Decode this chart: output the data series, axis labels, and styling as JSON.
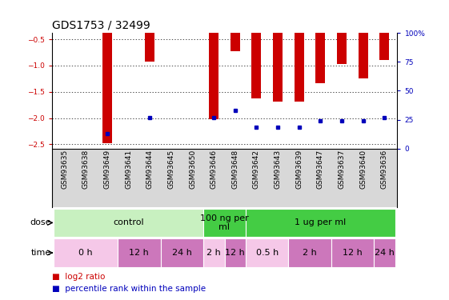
{
  "title": "GDS1753 / 32499",
  "samples": [
    "GSM93635",
    "GSM93638",
    "GSM93649",
    "GSM93641",
    "GSM93644",
    "GSM93645",
    "GSM93650",
    "GSM93646",
    "GSM93648",
    "GSM93642",
    "GSM93643",
    "GSM93639",
    "GSM93647",
    "GSM93637",
    "GSM93640",
    "GSM93636"
  ],
  "log2_ratio": [
    0,
    0,
    -2.48,
    0,
    -0.92,
    0,
    0,
    -2.02,
    -0.72,
    -1.63,
    -1.68,
    -1.68,
    -1.33,
    -0.97,
    -1.25,
    -0.9
  ],
  "pct_rank_log2": [
    null,
    null,
    -2.3,
    null,
    -1.99,
    null,
    null,
    -1.99,
    -1.85,
    -2.17,
    -2.17,
    -2.17,
    -2.05,
    -2.05,
    -2.05,
    -1.99
  ],
  "ylim": [
    -2.58,
    -0.38
  ],
  "yticks_left": [
    -0.5,
    -1.0,
    -1.5,
    -2.0,
    -2.5
  ],
  "yticks_right_pct": [
    0,
    25,
    50,
    75,
    100
  ],
  "baseline": 0.0,
  "dose_groups": [
    {
      "label": "control",
      "start": 0,
      "end": 7,
      "color": "#c8f0c0"
    },
    {
      "label": "100 ng per\nml",
      "start": 7,
      "end": 9,
      "color": "#44cc44"
    },
    {
      "label": "1 ug per ml",
      "start": 9,
      "end": 16,
      "color": "#44cc44"
    }
  ],
  "time_groups": [
    {
      "label": "0 h",
      "start": 0,
      "end": 3,
      "color": "#f5c8e8"
    },
    {
      "label": "12 h",
      "start": 3,
      "end": 5,
      "color": "#cc77bb"
    },
    {
      "label": "24 h",
      "start": 5,
      "end": 7,
      "color": "#cc77bb"
    },
    {
      "label": "2 h",
      "start": 7,
      "end": 8,
      "color": "#f5c8e8"
    },
    {
      "label": "12 h",
      "start": 8,
      "end": 9,
      "color": "#cc77bb"
    },
    {
      "label": "0.5 h",
      "start": 9,
      "end": 11,
      "color": "#f5c8e8"
    },
    {
      "label": "2 h",
      "start": 11,
      "end": 13,
      "color": "#cc77bb"
    },
    {
      "label": "12 h",
      "start": 13,
      "end": 15,
      "color": "#cc77bb"
    },
    {
      "label": "24 h",
      "start": 15,
      "end": 16,
      "color": "#cc77bb"
    }
  ],
  "bar_color": "#cc0000",
  "dot_color": "#0000bb",
  "bar_width": 0.45,
  "title_fontsize": 10,
  "tick_fontsize": 6.5,
  "row_label_fontsize": 8,
  "cell_fontsize": 8,
  "legend_fontsize": 7.5,
  "plot_bg": "#ffffff",
  "xtick_bg": "#d8d8d8"
}
